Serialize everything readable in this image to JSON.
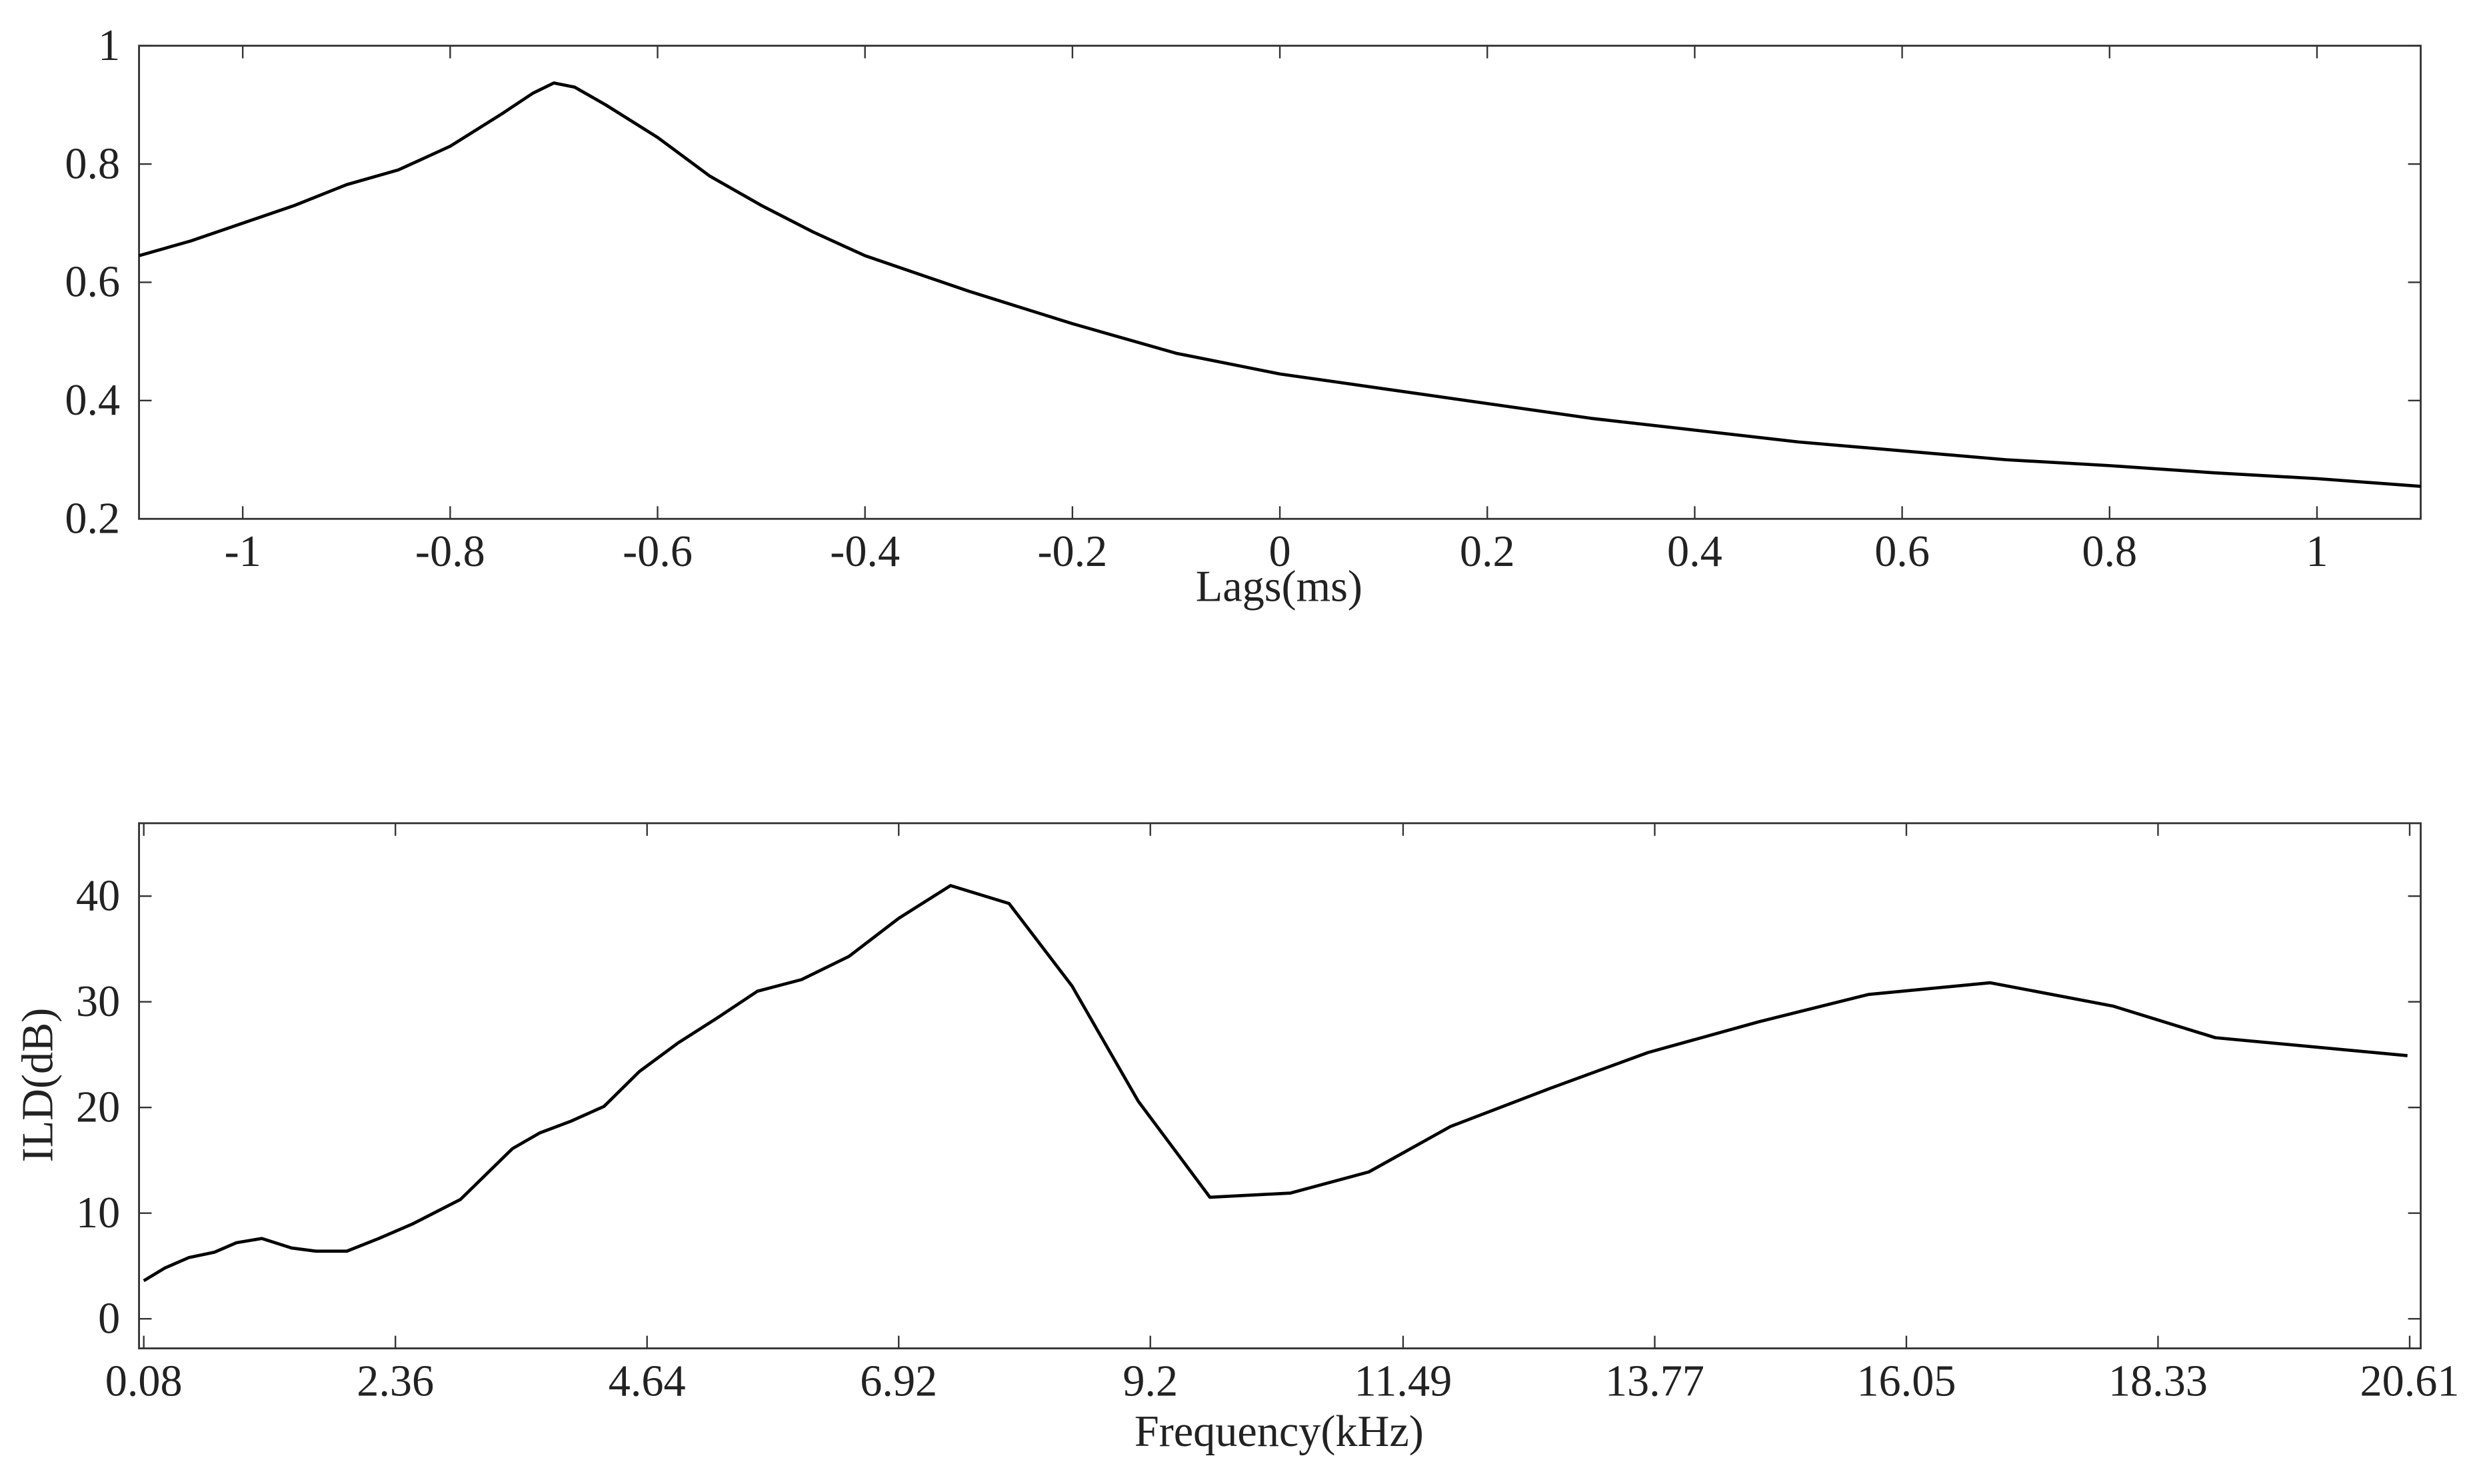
{
  "chart_data": [
    {
      "type": "line",
      "x_label": "Lags(ms)",
      "color": "#000000",
      "x": [
        -1.1,
        -1.05,
        -1.0,
        -0.95,
        -0.9,
        -0.85,
        -0.8,
        -0.75,
        -0.72,
        -0.7,
        -0.68,
        -0.65,
        -0.6,
        -0.55,
        -0.5,
        -0.45,
        -0.4,
        -0.3,
        -0.2,
        -0.1,
        0,
        0.1,
        0.2,
        0.3,
        0.4,
        0.5,
        0.6,
        0.7,
        0.8,
        0.9,
        1.0,
        1.1
      ],
      "values": [
        0.645,
        0.67,
        0.7,
        0.73,
        0.765,
        0.79,
        0.83,
        0.885,
        0.92,
        0.937,
        0.93,
        0.9,
        0.845,
        0.78,
        0.73,
        0.685,
        0.645,
        0.585,
        0.53,
        0.48,
        0.445,
        0.42,
        0.395,
        0.37,
        0.35,
        0.33,
        0.315,
        0.3,
        0.29,
        0.278,
        0.268,
        0.255
      ],
      "xlim": [
        -1.1,
        1.1
      ],
      "ylim": [
        0.2,
        1
      ],
      "xticks": [
        -1,
        -0.8,
        -0.6,
        -0.4,
        -0.2,
        0,
        0.2,
        0.4,
        0.6,
        0.8,
        1
      ],
      "yticks": [
        0.2,
        0.4,
        0.6,
        0.8,
        1
      ]
    },
    {
      "type": "line",
      "x_label": "Frequency(kHz)",
      "y_label": "ILD(dB)",
      "color": "#000000",
      "x": [
        0.08,
        0.27,
        0.49,
        0.72,
        0.92,
        1.15,
        1.42,
        1.64,
        1.92,
        2.21,
        2.52,
        2.95,
        3.42,
        3.67,
        3.95,
        4.25,
        4.57,
        4.92,
        5.28,
        5.64,
        6.04,
        6.47,
        6.92,
        7.39,
        7.92,
        8.49,
        9.09,
        9.74,
        10.47,
        11.18,
        11.92,
        12.82,
        13.71,
        14.71,
        15.71,
        16.81,
        17.92,
        18.85,
        20.59
      ],
      "values": [
        3.6,
        4.8,
        5.8,
        6.3,
        7.2,
        7.6,
        6.7,
        6.4,
        6.4,
        7.6,
        9.0,
        11.3,
        16.1,
        17.6,
        18.7,
        20.1,
        23.4,
        26.1,
        28.5,
        31.0,
        32.1,
        34.3,
        37.9,
        41.0,
        39.3,
        31.5,
        20.6,
        11.5,
        11.9,
        13.9,
        18.2,
        21.8,
        25.2,
        28.1,
        30.7,
        31.8,
        29.6,
        26.6,
        24.9
      ],
      "xlim": [
        0.037,
        20.71
      ],
      "ylim": [
        -2.8,
        46.9
      ],
      "xticks": [
        0.08,
        2.36,
        4.64,
        6.92,
        9.2,
        11.49,
        13.77,
        16.05,
        18.33,
        20.61
      ],
      "yticks": [
        0,
        10,
        20,
        30,
        40
      ]
    }
  ]
}
